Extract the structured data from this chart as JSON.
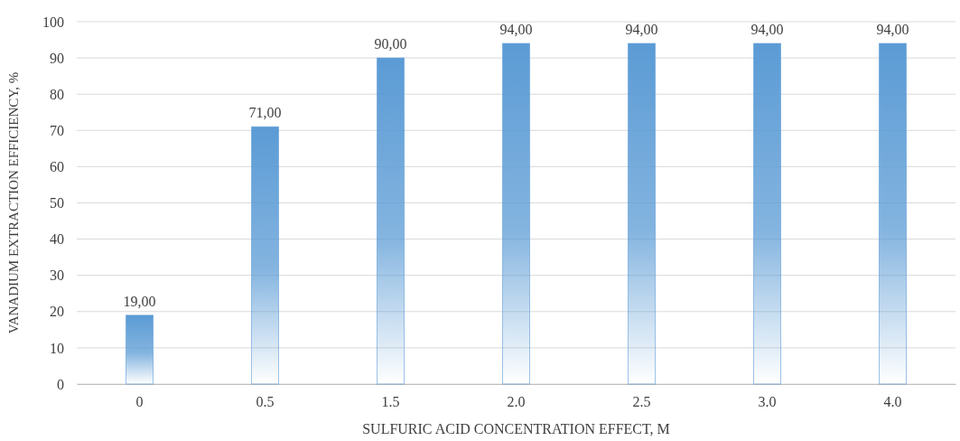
{
  "chart_data": {
    "type": "bar",
    "xlabel": "SULFURIC ACID CONCENTRATION EFFECT, M",
    "ylabel": "VANADIUM EXTRACTION EFFICIENCY, %",
    "categories": [
      "0",
      "0.5",
      "1.5",
      "2.0",
      "2.5",
      "3.0",
      "4.0"
    ],
    "values": [
      19,
      71,
      90,
      94,
      94,
      94,
      94
    ],
    "value_labels": [
      "19,00",
      "71,00",
      "90,00",
      "94,00",
      "94,00",
      "94,00",
      "94,00"
    ],
    "color": "#5b9bd5",
    "ylim": [
      0,
      100
    ],
    "yticks": [
      0,
      10,
      20,
      30,
      40,
      50,
      60,
      70,
      80,
      90,
      100
    ],
    "grid": "y"
  }
}
